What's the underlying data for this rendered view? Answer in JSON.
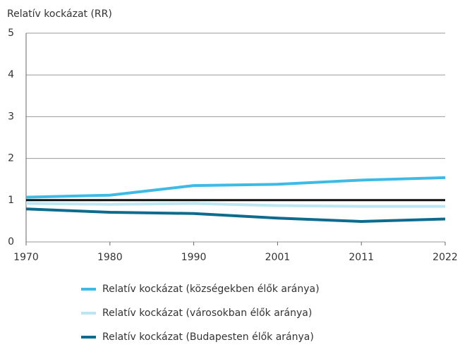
{
  "chart_data": {
    "type": "line",
    "y_label": "Relatív kockázat (RR)",
    "categories": [
      "1970",
      "1980",
      "1990",
      "2001",
      "2011",
      "2022"
    ],
    "series": [
      {
        "name": "Relatív kockázat (községekben élők aránya)",
        "color": "#3dbbe6",
        "values": [
          1.07,
          1.12,
          1.35,
          1.38,
          1.48,
          1.54
        ]
      },
      {
        "name": "Relatív kockázat (városokban élők aránya)",
        "color": "#bde6f4",
        "values": [
          0.92,
          0.9,
          0.92,
          0.87,
          0.85,
          0.85
        ]
      },
      {
        "name": "Relatív kockázat (Budapesten élők aránya)",
        "color": "#0d6b8e",
        "values": [
          0.79,
          0.71,
          0.68,
          0.57,
          0.49,
          0.55
        ]
      }
    ],
    "reference_line": {
      "value": 1,
      "color": "#111111"
    },
    "ylim": [
      0,
      5
    ],
    "yticks": [
      0,
      1,
      2,
      3,
      4,
      5
    ],
    "grid": true
  }
}
